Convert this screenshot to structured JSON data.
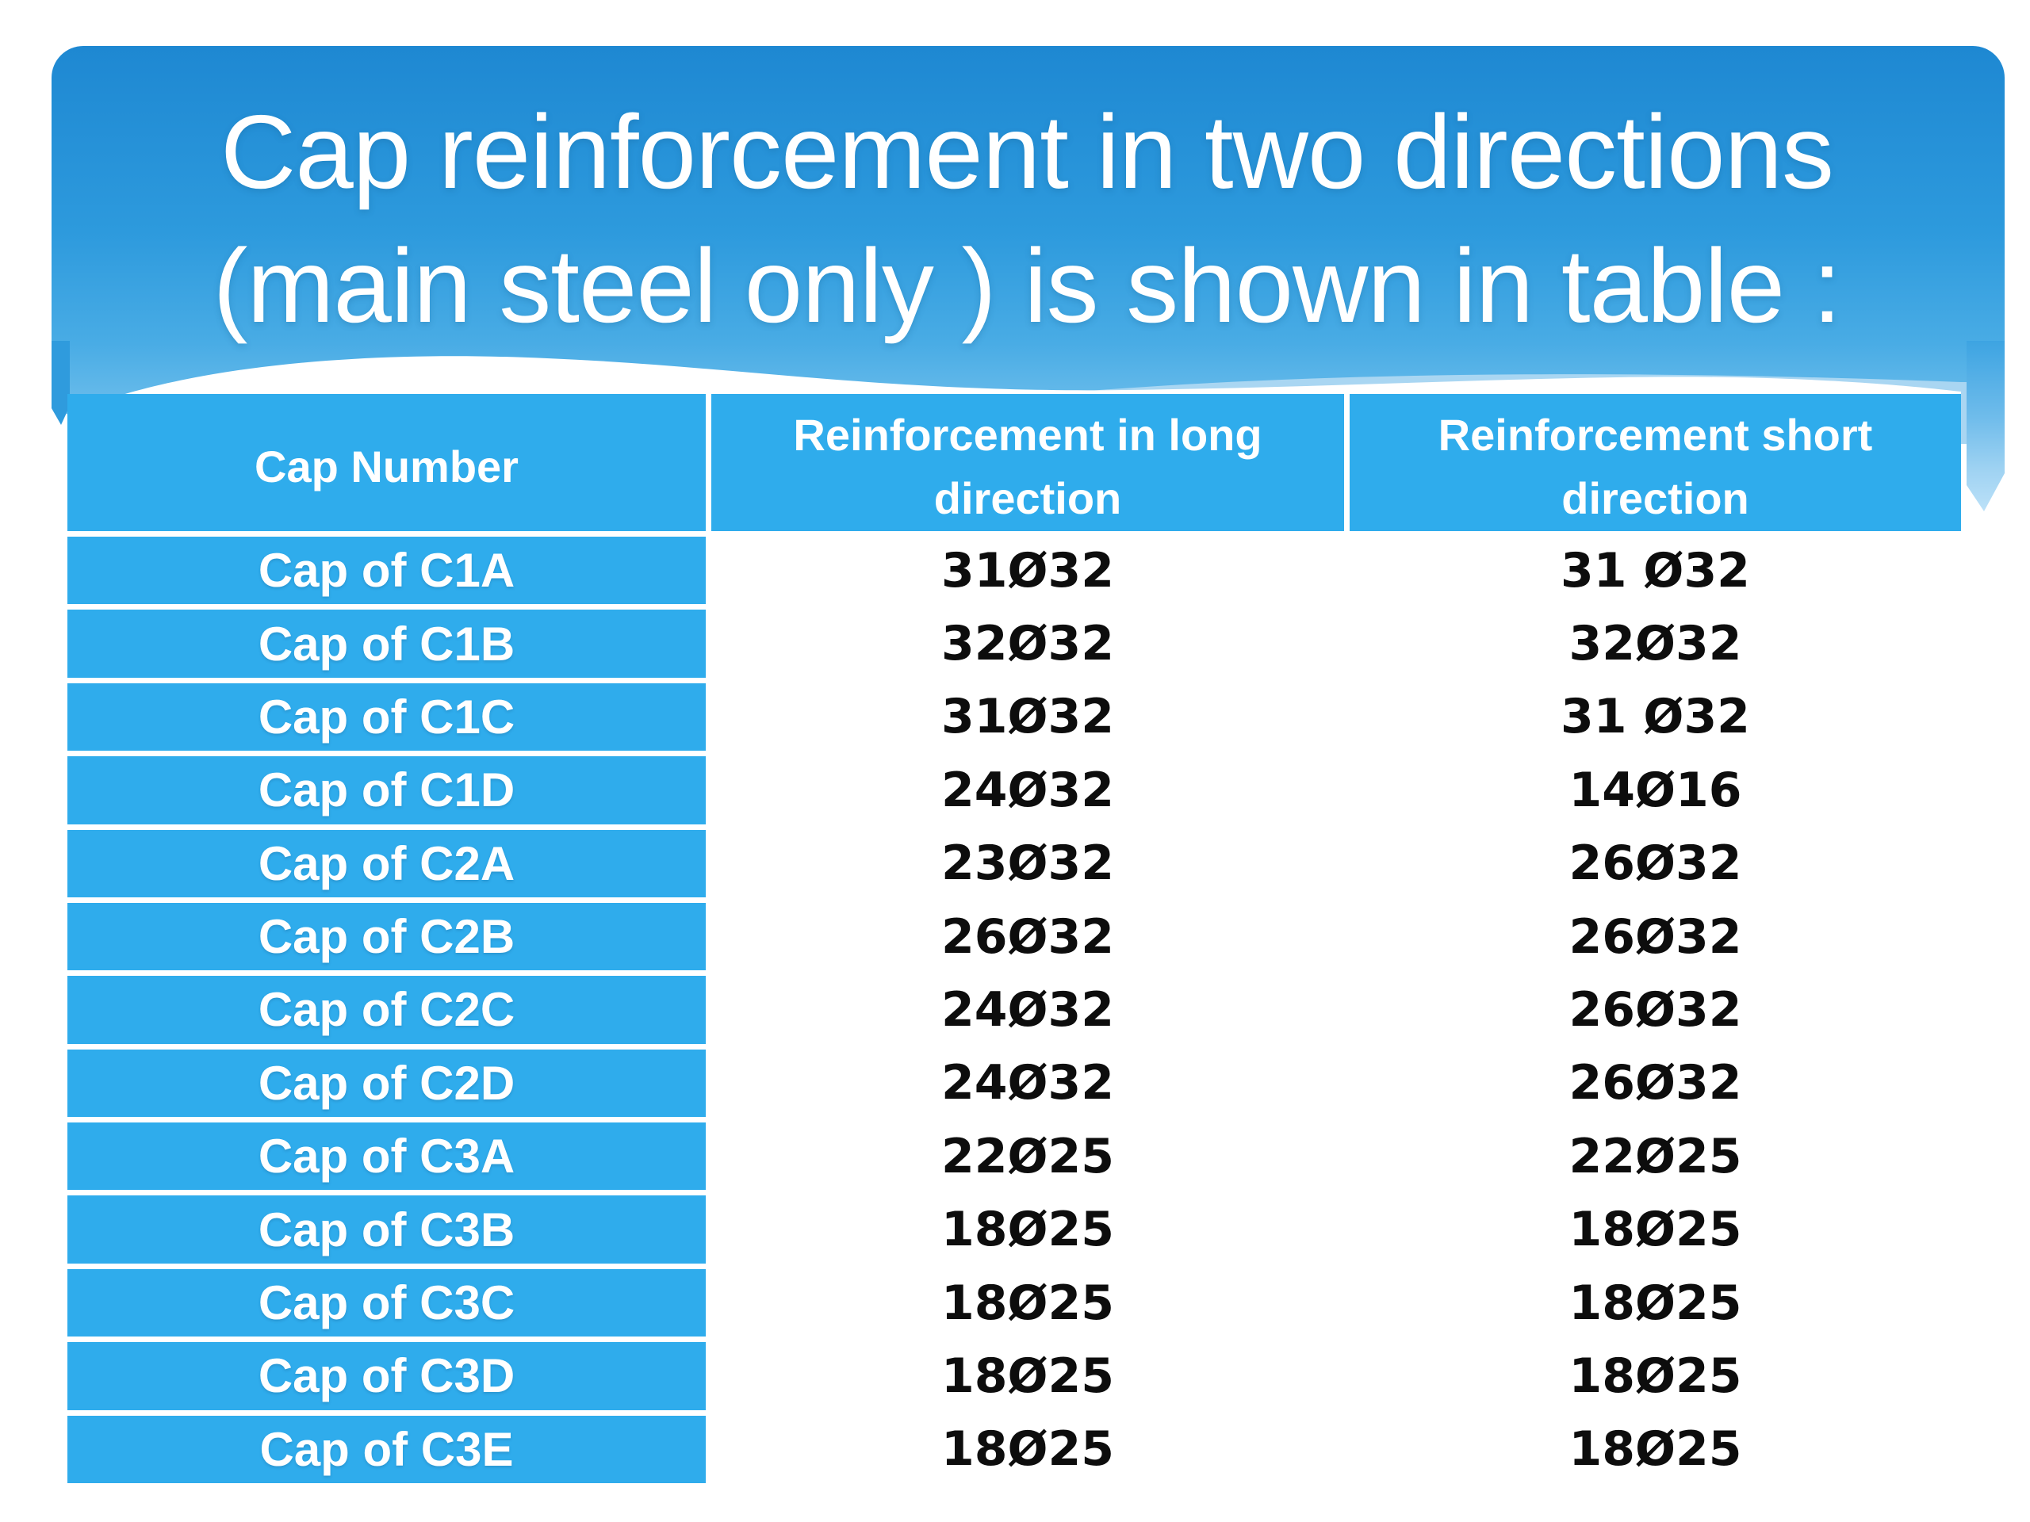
{
  "title": {
    "line1": "Cap reinforcement in two directions",
    "line2": "(main steel only ) is shown in table :"
  },
  "table": {
    "headers": [
      {
        "line1": "Cap Number",
        "line2": ""
      },
      {
        "line1": "Reinforcement in long",
        "line2": "direction"
      },
      {
        "line1": "Reinforcement short",
        "line2": "direction"
      }
    ],
    "rows": [
      {
        "cap": "Cap of C1A",
        "long": "31Ø32",
        "short": "31 Ø32"
      },
      {
        "cap": "Cap of C1B",
        "long": "32Ø32",
        "short": "32Ø32"
      },
      {
        "cap": "Cap of C1C",
        "long": "31Ø32",
        "short": "31 Ø32"
      },
      {
        "cap": "Cap of C1D",
        "long": "24Ø32",
        "short": "14Ø16"
      },
      {
        "cap": "Cap of C2A",
        "long": "23Ø32",
        "short": "26Ø32"
      },
      {
        "cap": "Cap of C2B",
        "long": "26Ø32",
        "short": "26Ø32"
      },
      {
        "cap": "Cap of C2C",
        "long": "24Ø32",
        "short": "26Ø32"
      },
      {
        "cap": "Cap of C2D",
        "long": "24Ø32",
        "short": "26Ø32"
      },
      {
        "cap": "Cap of C3A",
        "long": "22Ø25",
        "short": "22Ø25"
      },
      {
        "cap": "Cap of C3B",
        "long": "18Ø25",
        "short": "18Ø25"
      },
      {
        "cap": "Cap of C3C",
        "long": "18Ø25",
        "short": "18Ø25"
      },
      {
        "cap": "Cap of C3D",
        "long": "18Ø25",
        "short": "18Ø25"
      },
      {
        "cap": "Cap of C3E",
        "long": "18Ø25",
        "short": "18Ø25"
      }
    ]
  },
  "colors": {
    "header_blue": "#2FACEC",
    "row_dark": "#CBDDF3",
    "row_light": "#E9F0FB",
    "block_gradient_top": "#1E88D2",
    "block_gradient_mid": "#2D9ADD",
    "block_gradient_bottom": "#70BFEC",
    "pale_wave": "#A9D6F2",
    "value_text": "#0D0D0D"
  }
}
